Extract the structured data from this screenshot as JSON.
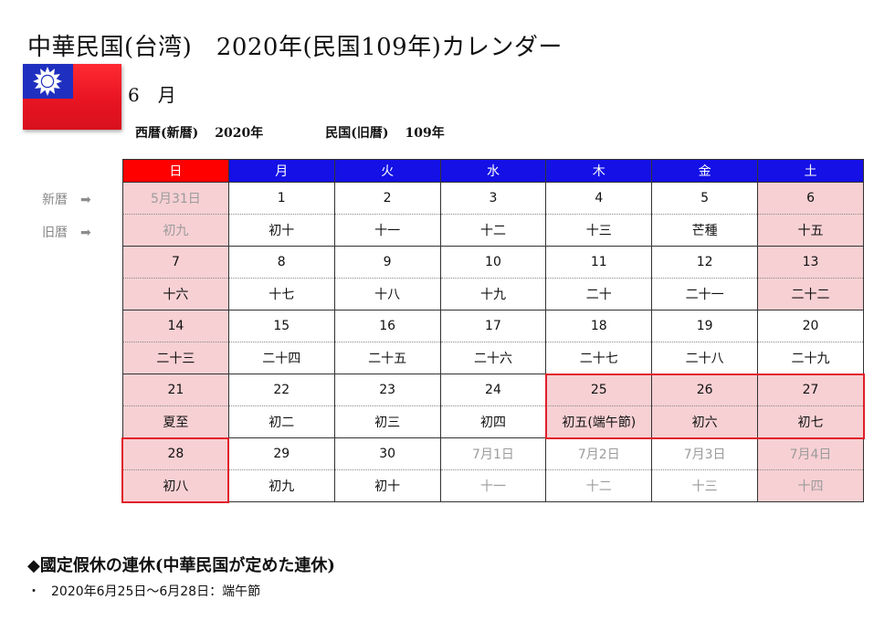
{
  "title": "中華民国(台湾)　2020年(民国109年)カレンダー",
  "month_label": "6　月",
  "era": {
    "western_label": "西暦(新暦)",
    "western_year": "2020年",
    "roc_label": "民国(旧暦)",
    "roc_year": "109年"
  },
  "side_labels": {
    "new_calendar": "新暦",
    "old_calendar": "旧暦",
    "arrow": "➡"
  },
  "weekdays": [
    "日",
    "月",
    "火",
    "水",
    "木",
    "金",
    "土"
  ],
  "weeks": [
    {
      "solar": [
        "5月31日",
        "1",
        "2",
        "3",
        "4",
        "5",
        "6"
      ],
      "lunar": [
        "初九",
        "初十",
        "十一",
        "十二",
        "十三",
        "芒種",
        "十五"
      ]
    },
    {
      "solar": [
        "7",
        "8",
        "9",
        "10",
        "11",
        "12",
        "13"
      ],
      "lunar": [
        "十六",
        "十七",
        "十八",
        "十九",
        "二十",
        "二十一",
        "二十二"
      ]
    },
    {
      "solar": [
        "14",
        "15",
        "16",
        "17",
        "18",
        "19",
        "20"
      ],
      "lunar": [
        "二十三",
        "二十四",
        "二十五",
        "二十六",
        "二十七",
        "二十八",
        "二十九"
      ]
    },
    {
      "solar": [
        "21",
        "22",
        "23",
        "24",
        "25",
        "26",
        "27"
      ],
      "lunar": [
        "夏至",
        "初二",
        "初三",
        "初四",
        "初五(端午節)",
        "初六",
        "初七"
      ]
    },
    {
      "solar": [
        "28",
        "29",
        "30",
        "7月1日",
        "7月2日",
        "7月3日",
        "7月4日"
      ],
      "lunar": [
        "初八",
        "初九",
        "初十",
        "十一",
        "十二",
        "十三",
        "十四"
      ]
    }
  ],
  "holiday_section": {
    "heading": "◆國定假休の連休(中華民国が定めた連休)",
    "bullet": "・",
    "item": "2020年6月25日～6月28日：端午節"
  },
  "colors": {
    "sunday_header": "#ff0000",
    "weekday_header": "#1410e6",
    "holiday_fill": "#f7d0d3",
    "holiday_border": "#e0202a",
    "outside_month_text": "#9b9b9b"
  }
}
